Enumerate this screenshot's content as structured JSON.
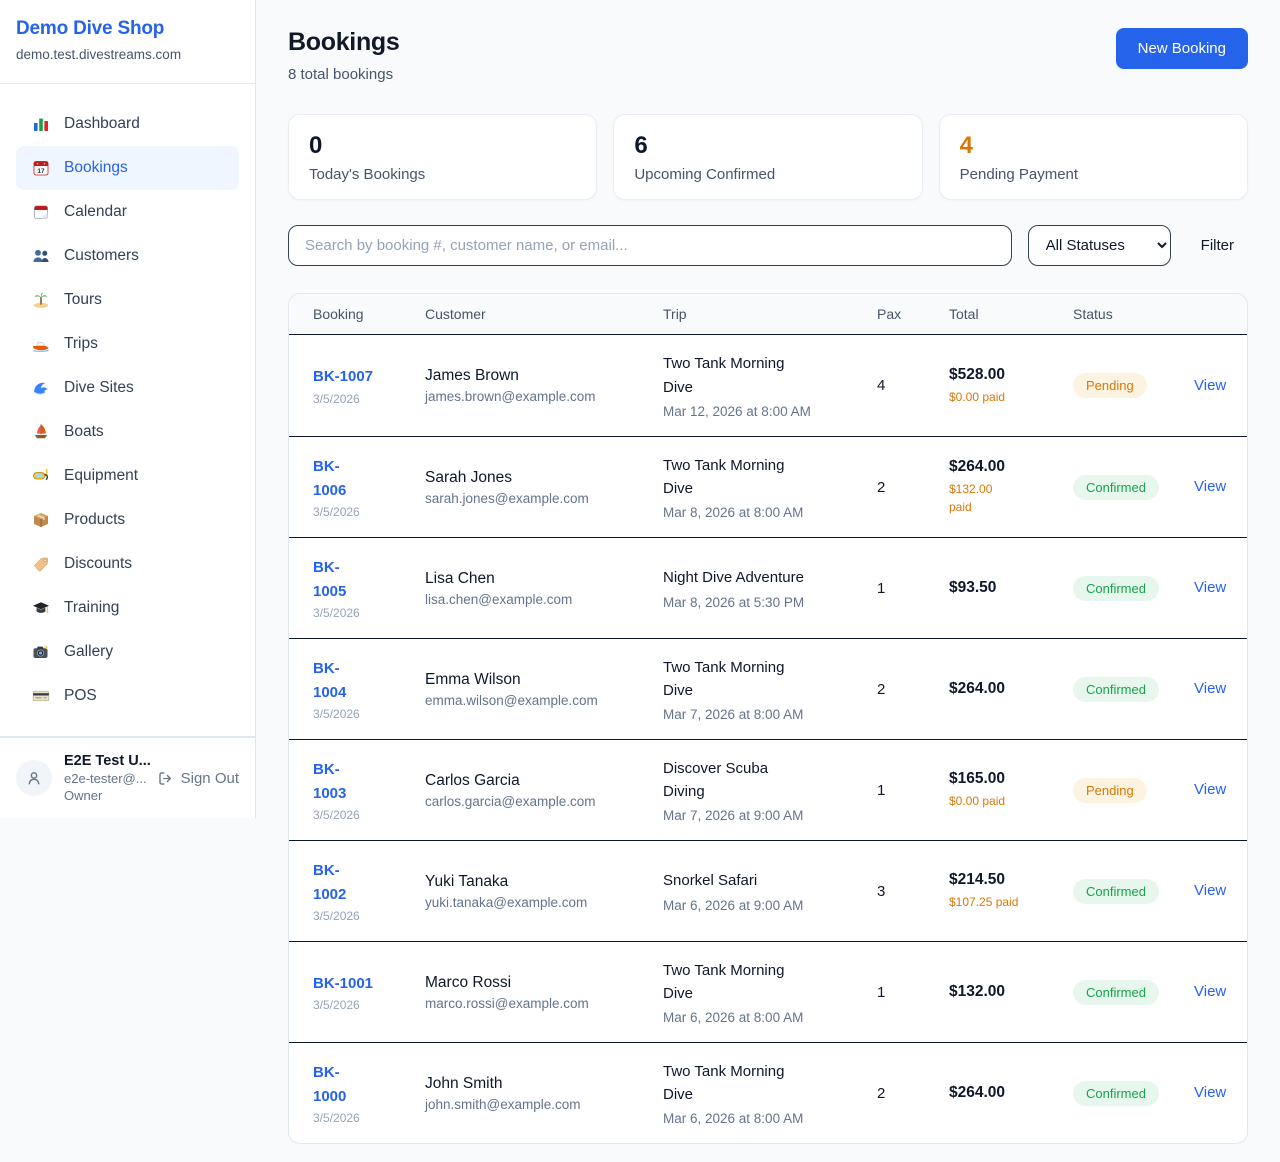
{
  "sidebar": {
    "brand": "Demo Dive Shop",
    "domain": "demo.test.divestreams.com",
    "items": [
      {
        "label": "Dashboard",
        "icon": "bar-chart",
        "active": false
      },
      {
        "label": "Bookings",
        "icon": "calendar-date",
        "active": true
      },
      {
        "label": "Calendar",
        "icon": "calendar",
        "active": false
      },
      {
        "label": "Customers",
        "icon": "people",
        "active": false
      },
      {
        "label": "Tours",
        "icon": "island",
        "active": false
      },
      {
        "label": "Trips",
        "icon": "speedboat",
        "active": false
      },
      {
        "label": "Dive Sites",
        "icon": "wave",
        "active": false
      },
      {
        "label": "Boats",
        "icon": "sailboat",
        "active": false
      },
      {
        "label": "Equipment",
        "icon": "snorkel-mask",
        "active": false
      },
      {
        "label": "Products",
        "icon": "package",
        "active": false
      },
      {
        "label": "Discounts",
        "icon": "tag",
        "active": false
      },
      {
        "label": "Training",
        "icon": "graduation-cap",
        "active": false
      },
      {
        "label": "Gallery",
        "icon": "camera",
        "active": false
      },
      {
        "label": "POS",
        "icon": "credit-card",
        "active": false
      }
    ],
    "user": {
      "name": "E2E Test U...",
      "email": "e2e-tester@...",
      "role": "Owner",
      "signout_label": "Sign Out"
    }
  },
  "header": {
    "title": "Bookings",
    "subtitle": "8 total bookings",
    "new_booking_label": "New Booking"
  },
  "stats": [
    {
      "value": "0",
      "label": "Today's Bookings",
      "color": "#0F172A"
    },
    {
      "value": "6",
      "label": "Upcoming Confirmed",
      "color": "#0F172A"
    },
    {
      "value": "4",
      "label": "Pending Payment",
      "color": "#D97706"
    }
  ],
  "toolbar": {
    "search_placeholder": "Search by booking #, customer name, or email...",
    "status_filter_value": "All Statuses",
    "filter_label": "Filter"
  },
  "table": {
    "columns": [
      "Booking",
      "Customer",
      "Trip",
      "Pax",
      "Total",
      "Status"
    ],
    "view_label": "View",
    "rows": [
      {
        "id": "BK-1007",
        "id_wrap": false,
        "date": "3/5/2026",
        "customer": "James Brown",
        "email": "james.brown@example.com",
        "trip": "Two Tank Morning Dive",
        "trip_wrap": true,
        "trip_time": "Mar 12, 2026 at 8:00 AM",
        "pax": "4",
        "total": "$528.00",
        "paid": "$0.00 paid",
        "paid_wrap": false,
        "status": "Pending"
      },
      {
        "id": "BK-1006",
        "id_wrap": true,
        "date": "3/5/2026",
        "customer": "Sarah Jones",
        "email": "sarah.jones@example.com",
        "trip": "Two Tank Morning Dive",
        "trip_wrap": true,
        "trip_time": "Mar 8, 2026 at 8:00 AM",
        "pax": "2",
        "total": "$264.00",
        "paid": "$132.00 paid",
        "paid_wrap": true,
        "status": "Confirmed"
      },
      {
        "id": "BK-1005",
        "id_wrap": true,
        "date": "3/5/2026",
        "customer": "Lisa Chen",
        "email": "lisa.chen@example.com",
        "trip": "Night Dive Adventure",
        "trip_wrap": false,
        "trip_time": "Mar 8, 2026 at 5:30 PM",
        "pax": "1",
        "total": "$93.50",
        "paid": "",
        "paid_wrap": false,
        "status": "Confirmed"
      },
      {
        "id": "BK-1004",
        "id_wrap": true,
        "date": "3/5/2026",
        "customer": "Emma Wilson",
        "email": "emma.wilson@example.com",
        "trip": "Two Tank Morning Dive",
        "trip_wrap": true,
        "trip_time": "Mar 7, 2026 at 8:00 AM",
        "pax": "2",
        "total": "$264.00",
        "paid": "",
        "paid_wrap": false,
        "status": "Confirmed"
      },
      {
        "id": "BK-1003",
        "id_wrap": true,
        "date": "3/5/2026",
        "customer": "Carlos Garcia",
        "email": "carlos.garcia@example.com",
        "trip": "Discover Scuba Diving",
        "trip_wrap": true,
        "trip_time": "Mar 7, 2026 at 9:00 AM",
        "pax": "1",
        "total": "$165.00",
        "paid": "$0.00 paid",
        "paid_wrap": false,
        "status": "Pending"
      },
      {
        "id": "BK-1002",
        "id_wrap": true,
        "date": "3/5/2026",
        "customer": "Yuki Tanaka",
        "email": "yuki.tanaka@example.com",
        "trip": "Snorkel Safari",
        "trip_wrap": false,
        "trip_time": "Mar 6, 2026 at 9:00 AM",
        "pax": "3",
        "total": "$214.50",
        "paid": "$107.25 paid",
        "paid_wrap": false,
        "status": "Confirmed"
      },
      {
        "id": "BK-1001",
        "id_wrap": false,
        "date": "3/5/2026",
        "customer": "Marco Rossi",
        "email": "marco.rossi@example.com",
        "trip": "Two Tank Morning Dive",
        "trip_wrap": true,
        "trip_time": "Mar 6, 2026 at 8:00 AM",
        "pax": "1",
        "total": "$132.00",
        "paid": "",
        "paid_wrap": false,
        "status": "Confirmed"
      },
      {
        "id": "BK-1000",
        "id_wrap": true,
        "date": "3/5/2026",
        "customer": "John Smith",
        "email": "john.smith@example.com",
        "trip": "Two Tank Morning Dive",
        "trip_wrap": true,
        "trip_time": "Mar 6, 2026 at 8:00 AM",
        "pax": "2",
        "total": "$264.00",
        "paid": "",
        "paid_wrap": false,
        "status": "Confirmed"
      }
    ]
  },
  "colors": {
    "accent_blue": "#2563EB",
    "pending_text": "#D97706",
    "pending_bg": "#FDF3E1",
    "confirmed_text": "#16A34A",
    "confirmed_bg": "#E8F7EE",
    "page_bg": "#F8FAFC",
    "row_divider": "#0F172A"
  }
}
